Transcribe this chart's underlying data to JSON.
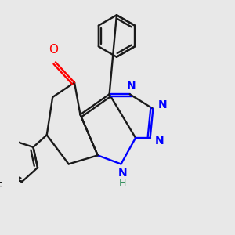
{
  "bg_color": "#e8e8e8",
  "bond_color": "#1a1a1a",
  "nitrogen_color": "#0000ff",
  "oxygen_color": "#ff0000",
  "line_width": 1.7,
  "figsize": [
    3.0,
    3.0
  ],
  "dpi": 100,
  "xlim": [
    -0.5,
    6.5
  ],
  "ylim": [
    -3.8,
    4.2
  ]
}
